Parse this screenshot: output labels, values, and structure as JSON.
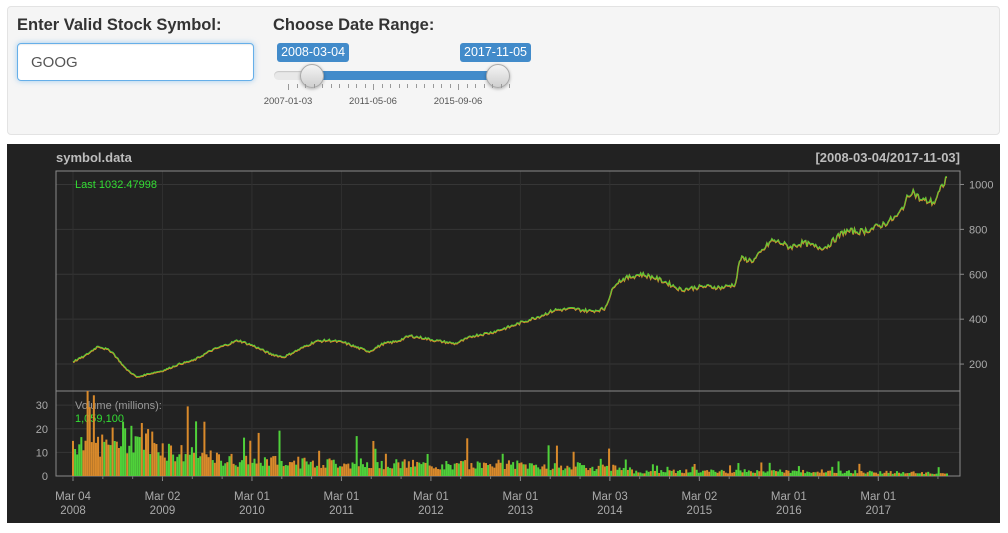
{
  "controls": {
    "symbol_label": "Enter Valid Stock Symbol:",
    "symbol_value": "GOOG",
    "date_label": "Choose Date Range:",
    "slider": {
      "from": "2008-03-04",
      "to": "2017-11-05",
      "from_fraction": 0.17,
      "to_fraction": 1.0,
      "tick_labels": [
        "2007-01-03",
        "2011-05-06",
        "2015-09-06"
      ]
    }
  },
  "chart_data": {
    "type": "line",
    "title": "symbol.data",
    "range_label": "[2008-03-04/2017-11-03]",
    "last_label": "Last 1032.47998",
    "volume_title": "Volume (millions):",
    "volume_last": "1,059,100",
    "x_ticks": [
      {
        "top": "Mar 04",
        "bottom": "2008"
      },
      {
        "top": "Mar 02",
        "bottom": "2009"
      },
      {
        "top": "Mar 01",
        "bottom": "2010"
      },
      {
        "top": "Mar 01",
        "bottom": "2011"
      },
      {
        "top": "Mar 01",
        "bottom": "2012"
      },
      {
        "top": "Mar 01",
        "bottom": "2013"
      },
      {
        "top": "Mar 03",
        "bottom": "2014"
      },
      {
        "top": "Mar 02",
        "bottom": "2015"
      },
      {
        "top": "Mar 01",
        "bottom": "2016"
      },
      {
        "top": "Mar 01",
        "bottom": "2017"
      }
    ],
    "price": {
      "ylim": [
        80,
        1060
      ],
      "y_ticks": [
        200,
        400,
        600,
        800,
        1000
      ],
      "x": [
        2008.17,
        2008.3,
        2008.45,
        2008.6,
        2008.75,
        2008.88,
        2009.0,
        2009.17,
        2009.35,
        2009.5,
        2009.7,
        2009.9,
        2010.0,
        2010.17,
        2010.35,
        2010.5,
        2010.65,
        2010.85,
        2011.0,
        2011.17,
        2011.3,
        2011.45,
        2011.6,
        2011.75,
        2011.9,
        2012.05,
        2012.17,
        2012.4,
        2012.6,
        2012.8,
        2013.0,
        2013.17,
        2013.35,
        2013.5,
        2013.7,
        2013.9,
        2014.05,
        2014.17,
        2014.27,
        2014.45,
        2014.6,
        2014.75,
        2014.9,
        2015.05,
        2015.17,
        2015.35,
        2015.5,
        2015.55,
        2015.7,
        2015.9,
        2016.0,
        2016.1,
        2016.25,
        2016.4,
        2016.5,
        2016.7,
        2016.9,
        2017.0,
        2017.15,
        2017.3,
        2017.45,
        2017.55,
        2017.7,
        2017.84
      ],
      "y": [
        210,
        235,
        280,
        255,
        180,
        140,
        155,
        170,
        200,
        215,
        260,
        290,
        305,
        280,
        245,
        230,
        260,
        300,
        305,
        295,
        275,
        255,
        290,
        300,
        325,
        315,
        305,
        290,
        325,
        340,
        365,
        390,
        415,
        440,
        445,
        435,
        445,
        560,
        580,
        600,
        585,
        560,
        530,
        540,
        545,
        540,
        555,
        670,
        660,
        750,
        740,
        720,
        740,
        720,
        720,
        790,
        790,
        800,
        825,
        860,
        975,
        930,
        920,
        1032.48
      ]
    },
    "volume": {
      "ylim": [
        0,
        36
      ],
      "y_ticks": [
        0,
        10,
        20,
        30
      ],
      "x": [
        2008.17,
        2008.5,
        2008.85,
        2009.3,
        2009.8,
        2010.3,
        2010.8,
        2011.3,
        2011.8,
        2012.3,
        2012.8,
        2013.3,
        2013.8,
        2014.2,
        2014.3,
        2014.8,
        2015.3,
        2015.8,
        2016.3,
        2016.8,
        2017.3,
        2017.84
      ],
      "y": [
        15,
        13,
        18,
        10,
        7,
        6.5,
        5.5,
        5.5,
        5,
        4.5,
        5,
        4.5,
        4,
        3.5,
        2,
        2,
        2,
        2,
        2,
        1.8,
        1.5,
        1.06
      ]
    }
  }
}
